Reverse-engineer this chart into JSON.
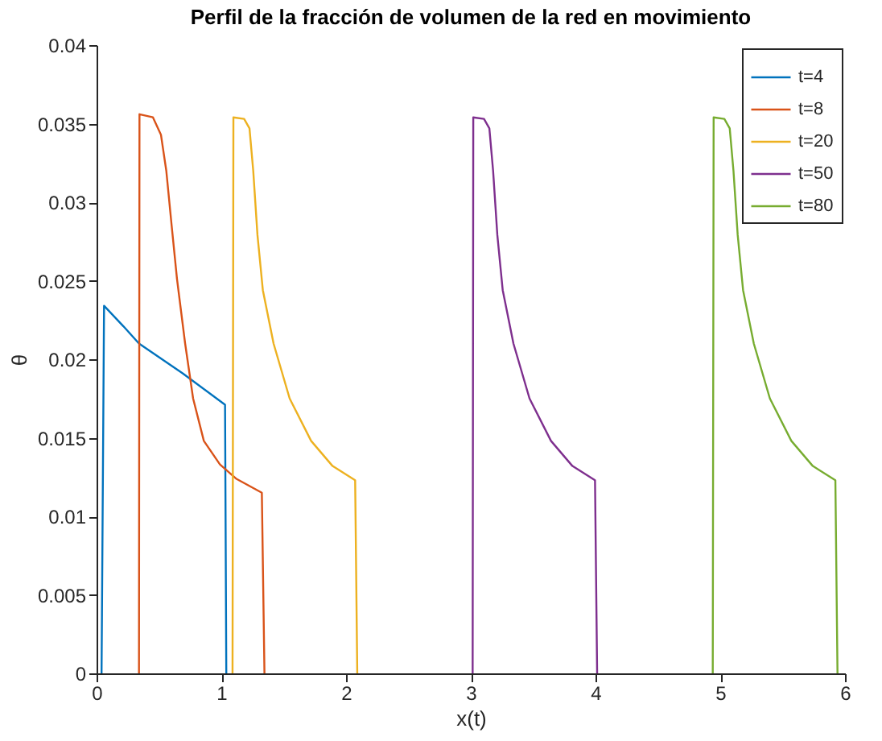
{
  "chart_data": {
    "type": "line",
    "title": "Perfil de la fracción de volumen de la red en movimiento",
    "xlabel": "x(t)",
    "ylabel": "θ",
    "xlim": [
      0,
      6
    ],
    "xticks": [
      0,
      1,
      2,
      3,
      4,
      5,
      6
    ],
    "ylim": [
      0,
      0.04
    ],
    "yticks": [
      0,
      0.005,
      0.01,
      0.015,
      0.02,
      0.025,
      0.03,
      0.035,
      0.04
    ],
    "grid": false,
    "legend": "top right",
    "line_style": "solid",
    "marker": "none",
    "series": [
      {
        "name": "t=4",
        "color": "#0072bd",
        "x": [
          0.04,
          0.06,
          0.215,
          0.34,
          0.69,
          1.03,
          1.04
        ],
        "values": [
          0,
          0.0234,
          0.0221,
          0.021,
          0.0191,
          0.0171,
          0
        ]
      },
      {
        "name": "t=8",
        "color": "#d95319",
        "x": [
          0.34,
          0.344,
          0.452,
          0.516,
          0.559,
          0.602,
          0.645,
          0.71,
          0.774,
          0.86,
          0.989,
          1.118,
          1.325,
          1.346
        ],
        "values": [
          0,
          0.0356,
          0.0354,
          0.0343,
          0.032,
          0.0285,
          0.0251,
          0.021,
          0.0175,
          0.0148,
          0.0133,
          0.0124,
          0.0115,
          0
        ]
      },
      {
        "name": "t=20",
        "color": "#edb120",
        "x": [
          1.09,
          1.097,
          1.183,
          1.226,
          1.256,
          1.29,
          1.333,
          1.419,
          1.548,
          1.72,
          1.892,
          2.073,
          2.09
        ],
        "values": [
          0,
          0.0354,
          0.0353,
          0.0347,
          0.032,
          0.0279,
          0.0244,
          0.021,
          0.0175,
          0.0148,
          0.0132,
          0.0123,
          0
        ]
      },
      {
        "name": "t=50",
        "color": "#7e2f8e",
        "x": [
          3.015,
          3.02,
          3.106,
          3.149,
          3.179,
          3.213,
          3.256,
          3.342,
          3.471,
          3.643,
          3.815,
          3.996,
          4.013
        ],
        "values": [
          0,
          0.0354,
          0.0353,
          0.0347,
          0.032,
          0.0279,
          0.0244,
          0.021,
          0.0175,
          0.0148,
          0.0132,
          0.0123,
          0
        ]
      },
      {
        "name": "t=80",
        "color": "#77ac30",
        "x": [
          4.94,
          4.947,
          5.033,
          5.076,
          5.106,
          5.14,
          5.183,
          5.269,
          5.398,
          5.57,
          5.742,
          5.923,
          5.94
        ],
        "values": [
          0,
          0.0354,
          0.0353,
          0.0347,
          0.032,
          0.0279,
          0.0244,
          0.021,
          0.0175,
          0.0148,
          0.0132,
          0.0123,
          0
        ]
      }
    ]
  }
}
